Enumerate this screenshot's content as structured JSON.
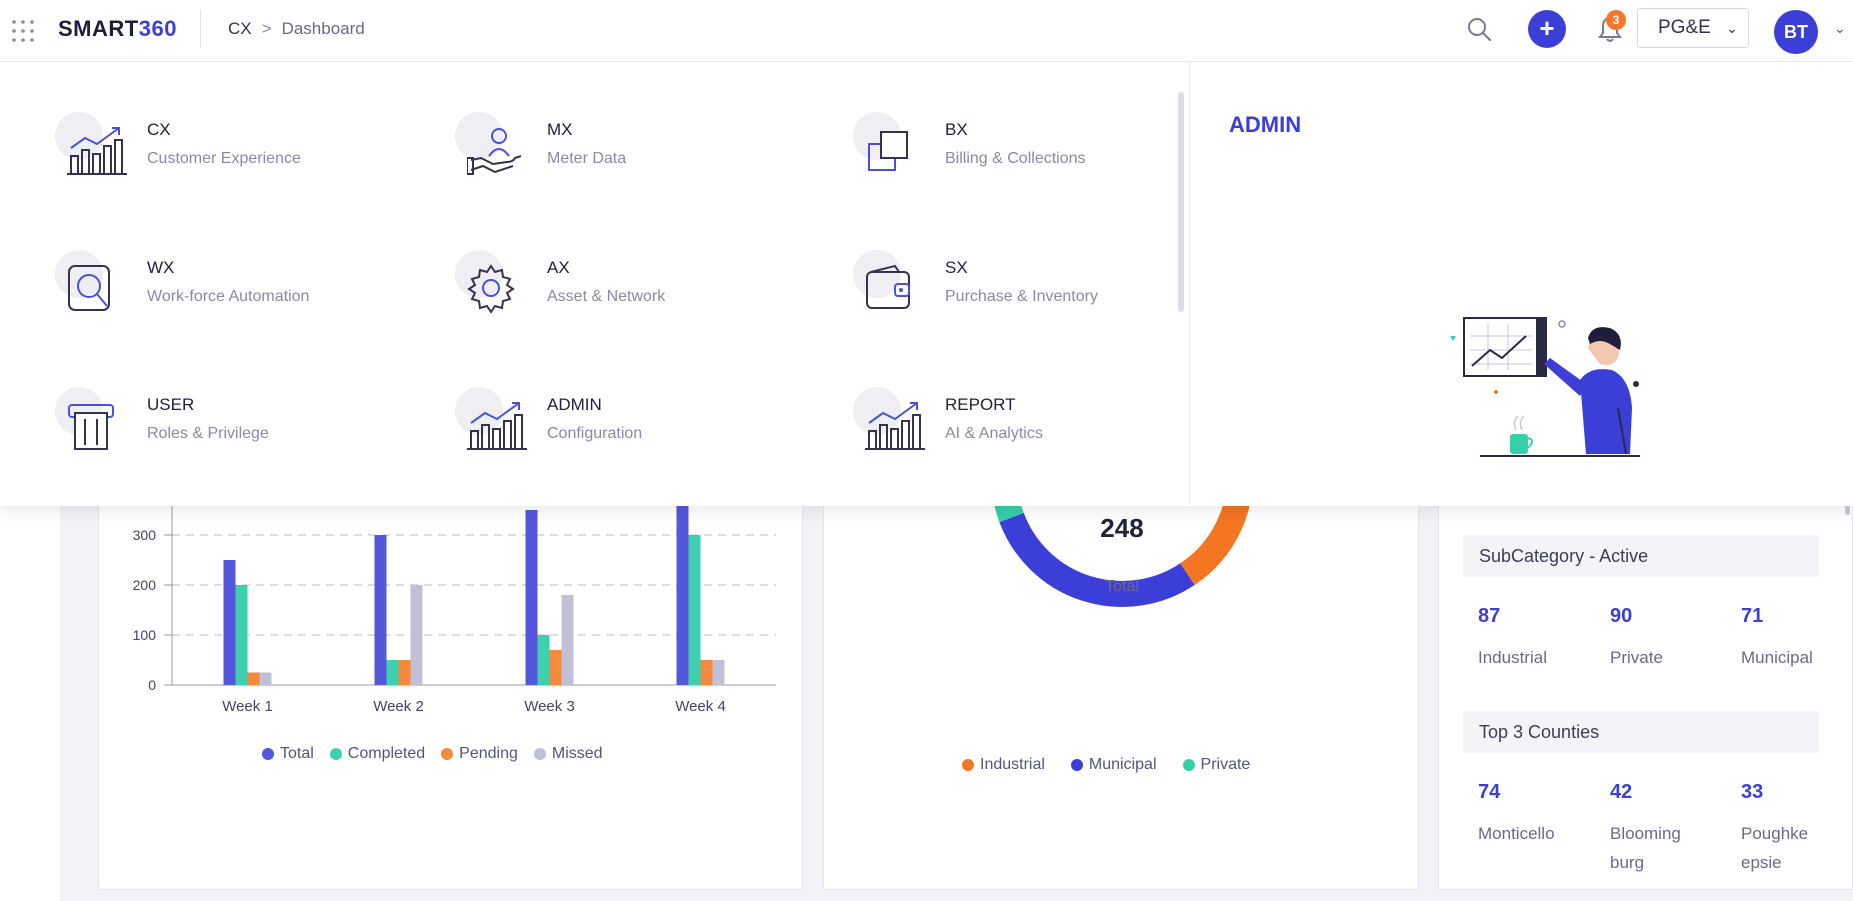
{
  "header": {
    "logo_main": "SMART",
    "logo_accent": "360",
    "breadcrumb": [
      "CX",
      "Dashboard"
    ],
    "breadcrumb_sep": ">",
    "add_label": "+",
    "notification_count": "3",
    "org_selected": "PG&E",
    "avatar_initials": "BT",
    "chevron": "⌄"
  },
  "mega_menu": {
    "title": "ADMIN",
    "modules": [
      {
        "name": "CX",
        "desc": "Customer Experience",
        "icon": "growth-chart-icon"
      },
      {
        "name": "MX",
        "desc": "Meter Data",
        "icon": "hand-user-icon"
      },
      {
        "name": "BX",
        "desc": "Billing & Collections",
        "icon": "copy-squares-icon"
      },
      {
        "name": "WX",
        "desc": "Work-force Automation",
        "icon": "search-doc-icon"
      },
      {
        "name": "AX",
        "desc": "Asset & Network",
        "icon": "gear-icon"
      },
      {
        "name": "SX",
        "desc": "Purchase & Inventory",
        "icon": "wallet-icon"
      },
      {
        "name": "USER",
        "desc": "Roles & Privilege",
        "icon": "card-icon"
      },
      {
        "name": "ADMIN",
        "desc": "Configuration",
        "icon": "growth-chart-icon"
      },
      {
        "name": "REPORT",
        "desc": "AI & Analytics",
        "icon": "growth-chart-icon"
      }
    ]
  },
  "chart_data": [
    {
      "type": "bar",
      "categories": [
        "Week 1",
        "Week 2",
        "Week 3",
        "Week 4"
      ],
      "series": [
        {
          "name": "Total",
          "values": [
            250,
            300,
            350,
            360
          ]
        },
        {
          "name": "Completed",
          "values": [
            200,
            50,
            100,
            300
          ]
        },
        {
          "name": "Pending",
          "values": [
            25,
            50,
            70,
            50
          ]
        },
        {
          "name": "Missed",
          "values": [
            25,
            200,
            180,
            50
          ]
        }
      ],
      "y_ticks": [
        "0",
        "100",
        "200",
        "300"
      ],
      "colors": [
        "#5457dc",
        "#3ecfae",
        "#f58a3c",
        "#c0c0d6"
      ],
      "legend_position": "bottom",
      "grid": true
    },
    {
      "type": "pie",
      "center_value": "248",
      "center_label": "Total",
      "categories": [
        "Industrial",
        "Municipal",
        "Private"
      ],
      "values": [
        87,
        71,
        90
      ],
      "colors": [
        "#f47622",
        "#3b3fd8",
        "#35cfa8"
      ],
      "legend_position": "bottom"
    }
  ],
  "subcategory": {
    "title": "SubCategory - Active",
    "items": [
      {
        "value": "87",
        "label": "Industrial"
      },
      {
        "value": "90",
        "label": "Private"
      },
      {
        "value": "71",
        "label": "Municipal"
      }
    ]
  },
  "counties": {
    "title": "Top 3 Counties",
    "items": [
      {
        "value": "74",
        "label": "Monticello"
      },
      {
        "value": "42",
        "label": "Bloomingburg"
      },
      {
        "value": "33",
        "label": "Poughkeepsie"
      }
    ]
  }
}
